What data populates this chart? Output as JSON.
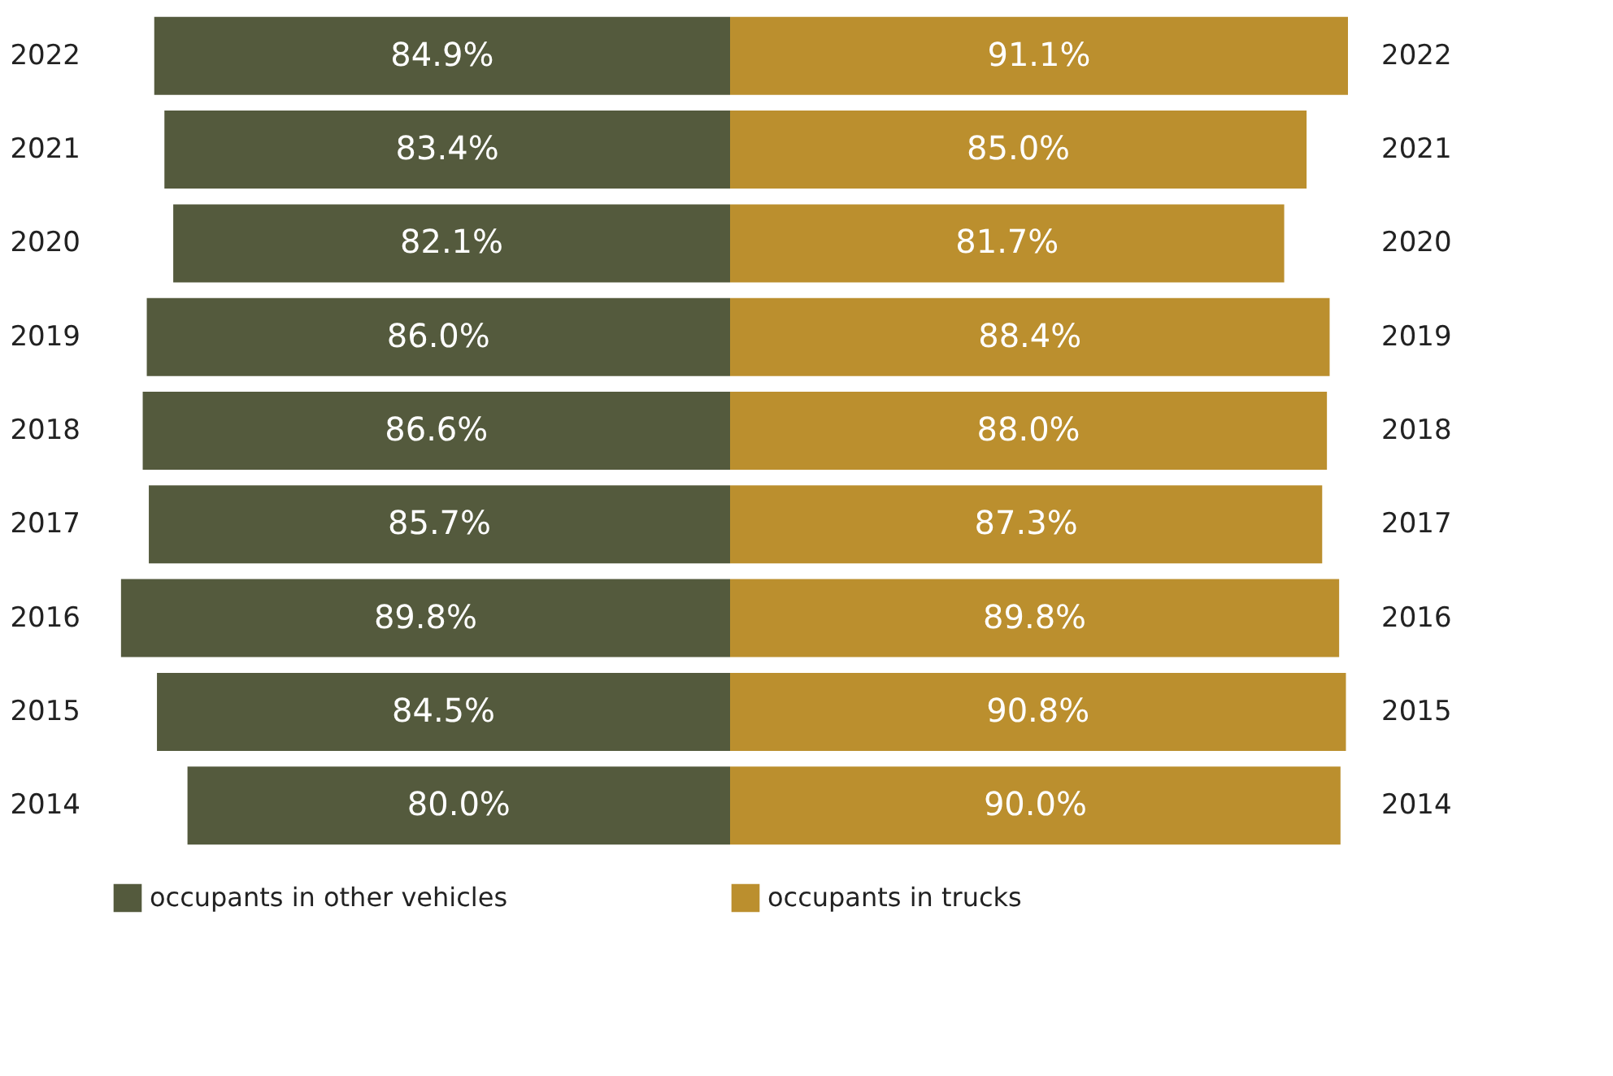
{
  "chart_data": [
    {
      "type": "bar",
      "orientation": "horizontal",
      "categories": [
        "2022",
        "2021",
        "2020",
        "2019",
        "2018",
        "2017",
        "2016",
        "2015",
        "2014"
      ],
      "grid": false,
      "series": [
        {
          "name": "occupants in other vehicles",
          "color": "#545a3d",
          "values": [
            84.9,
            83.4,
            82.1,
            86.0,
            86.6,
            85.7,
            89.8,
            84.5,
            80.0
          ],
          "value_labels": [
            "84.9%",
            "83.4%",
            "82.1%",
            "86.0%",
            "86.6%",
            "85.7%",
            "89.8%",
            "84.5%",
            "80.0%"
          ]
        }
      ],
      "legend": "bottom"
    },
    {
      "type": "bar",
      "orientation": "horizontal",
      "categories": [
        "2022",
        "2021",
        "2020",
        "2019",
        "2018",
        "2017",
        "2016",
        "2015",
        "2014"
      ],
      "series": [
        {
          "name": "occupants in trucks",
          "color": "#bb8f2e",
          "values": [
            91.1,
            85.0,
            81.7,
            88.4,
            88.0,
            87.3,
            89.8,
            90.8,
            90.0
          ],
          "value_labels": [
            "91.1%",
            "85.0%",
            "81.7%",
            "88.4%",
            "88.0%",
            "87.3%",
            "89.8%",
            "90.8%",
            "90.0%"
          ]
        }
      ],
      "legend": "bottom",
      "grid": false
    }
  ]
}
